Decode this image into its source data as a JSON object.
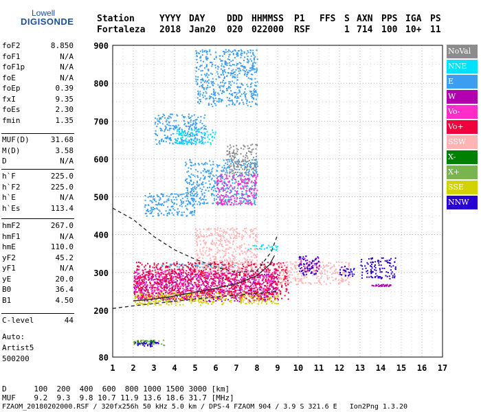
{
  "logo": {
    "line1": "Lowell",
    "line2": "DIGISONDE"
  },
  "header": {
    "labels": [
      "Station",
      "YYYY",
      "DAY",
      "DDD",
      "HHMMSS",
      "P1",
      "FFS",
      "S",
      "AXN",
      "PPS",
      "IGA",
      "PS"
    ],
    "values": [
      "Fortaleza",
      "2018",
      "Jan20",
      "020",
      "022000",
      "RSF",
      "1",
      "714",
      "100",
      "10+",
      "11"
    ]
  },
  "params": {
    "group1": [
      {
        "name": "foF2",
        "value": "8.850"
      },
      {
        "name": "foF1",
        "value": "N/A"
      },
      {
        "name": "foF1p",
        "value": "N/A"
      },
      {
        "name": "foE",
        "value": "N/A"
      },
      {
        "name": "foEp",
        "value": "0.39"
      },
      {
        "name": "fxI",
        "value": "9.35"
      },
      {
        "name": "foEs",
        "value": "2.30"
      },
      {
        "name": "fmin",
        "value": "1.35"
      }
    ],
    "group2": [
      {
        "name": "MUF(D)",
        "value": "31.68"
      },
      {
        "name": "M(D)",
        "value": "3.58"
      },
      {
        "name": "D",
        "value": "N/A"
      }
    ],
    "group3": [
      {
        "name": "h`F",
        "value": "225.0"
      },
      {
        "name": "h`F2",
        "value": "225.0"
      },
      {
        "name": "h`E",
        "value": "N/A"
      },
      {
        "name": "h`Es",
        "value": "113.4"
      }
    ],
    "group4": [
      {
        "name": "hmF2",
        "value": "267.0"
      },
      {
        "name": "hmF1",
        "value": "N/A"
      },
      {
        "name": "hmE",
        "value": "110.0"
      },
      {
        "name": "yF2",
        "value": "45.2"
      },
      {
        "name": "yF1",
        "value": "N/A"
      },
      {
        "name": "yE",
        "value": "20.0"
      },
      {
        "name": "B0",
        "value": "36.4"
      },
      {
        "name": "B1",
        "value": "4.50"
      }
    ],
    "clevel": {
      "name": "C-level",
      "value": "44"
    }
  },
  "autoscale": {
    "line1": "Auto:",
    "line2": "Artist5",
    "line3": "500200"
  },
  "legend": [
    {
      "label": "NoVal",
      "color": "#8c8c8c"
    },
    {
      "label": "NNE",
      "color": "#00e0ff"
    },
    {
      "label": "E",
      "color": "#3c9ef0"
    },
    {
      "label": "W",
      "color": "#b000b0"
    },
    {
      "label": "Vo-",
      "color": "#ff2cc8"
    },
    {
      "label": "Vo+",
      "color": "#f0003c"
    },
    {
      "label": "SSW",
      "color": "#ffb4b4"
    },
    {
      "label": "X-",
      "color": "#008000"
    },
    {
      "label": "X+",
      "color": "#78b450"
    },
    {
      "label": "SSE",
      "color": "#d2d200"
    },
    {
      "label": "NNW",
      "color": "#2800d2"
    }
  ],
  "footer": {
    "d_row": "D      100  200  400  600  800 1000 1500 3000 [km]",
    "muf_row": "MUF    9.2  9.3  9.8 10.7 11.9 13.6 18.6 31.7 [MHz]",
    "info": "FZAOM_20180202000.RSF / 320fx256h 50 kHz 5.0 km / DPS-4 FZAOM 904 / 3.9 S 321.6 E   Ion2Png 1.3.20"
  },
  "chart_data": {
    "type": "scatter",
    "title": "",
    "xlabel": "",
    "ylabel": "",
    "xlim": [
      1,
      17
    ],
    "ylim": [
      80,
      900
    ],
    "x_ticks": [
      1,
      2,
      3,
      4,
      5,
      6,
      7,
      8,
      9,
      10,
      11,
      12,
      13,
      14,
      15,
      16,
      17
    ],
    "y_ticks": [
      80,
      200,
      300,
      400,
      500,
      600,
      700,
      800,
      900
    ],
    "grid": true,
    "legend_position": "right",
    "series": [
      {
        "name": "E",
        "color": "#3c9ef0",
        "clusters": [
          {
            "x": [
              3.0,
              5.5
            ],
            "y": [
              640,
              720
            ]
          },
          {
            "x": [
              5.0,
              8.0
            ],
            "y": [
              740,
              890
            ]
          },
          {
            "x": [
              2.5,
              5.0
            ],
            "y": [
              450,
              510
            ]
          },
          {
            "x": [
              4.5,
              8.0
            ],
            "y": [
              480,
              600
            ]
          },
          {
            "x": [
              3.0,
              7.0
            ],
            "y": [
              315,
              325
            ]
          }
        ]
      },
      {
        "name": "NNE",
        "color": "#00e0ff",
        "clusters": [
          {
            "x": [
              7.5,
              9.0
            ],
            "y": [
              360,
              375
            ]
          },
          {
            "x": [
              4.0,
              6.0
            ],
            "y": [
              640,
              680
            ]
          }
        ]
      },
      {
        "name": "W",
        "color": "#b000b0",
        "clusters": [
          {
            "x": [
              2.0,
              9.0
            ],
            "y": [
              225,
              300
            ]
          },
          {
            "x": [
              10.0,
              11.0
            ],
            "y": [
              300,
              340
            ]
          },
          {
            "x": [
              13.5,
              14.5
            ],
            "y": [
              265,
              270
            ]
          }
        ]
      },
      {
        "name": "Vo-",
        "color": "#ff2cc8",
        "clusters": [
          {
            "x": [
              2.0,
              9.0
            ],
            "y": [
              235,
              310
            ]
          },
          {
            "x": [
              6.0,
              8.0
            ],
            "y": [
              480,
              560
            ]
          }
        ]
      },
      {
        "name": "Vo+",
        "color": "#f0003c",
        "clusters": [
          {
            "x": [
              2.0,
              9.5
            ],
            "y": [
              230,
              330
            ]
          }
        ]
      },
      {
        "name": "SSW",
        "color": "#ffb4b4",
        "clusters": [
          {
            "x": [
              9.0,
              12.5
            ],
            "y": [
              270,
              330
            ]
          },
          {
            "x": [
              5.0,
              8.0
            ],
            "y": [
              300,
              420
            ]
          }
        ]
      },
      {
        "name": "X-",
        "color": "#008000",
        "clusters": [
          {
            "x": [
              2.0,
              3.0
            ],
            "y": [
              115,
              125
            ]
          }
        ]
      },
      {
        "name": "X+",
        "color": "#78b450",
        "clusters": [
          {
            "x": [
              2.0,
              3.5
            ],
            "y": [
              110,
              125
            ]
          }
        ]
      },
      {
        "name": "SSE",
        "color": "#d2d200",
        "clusters": [
          {
            "x": [
              2.0,
              9.0
            ],
            "y": [
              215,
              250
            ]
          }
        ]
      },
      {
        "name": "NNW",
        "color": "#2800d2",
        "clusters": [
          {
            "x": [
              2.0,
              3.2
            ],
            "y": [
              108,
              120
            ]
          },
          {
            "x": [
              10.0,
              11.0
            ],
            "y": [
              295,
              345
            ]
          },
          {
            "x": [
              12.0,
              12.7
            ],
            "y": [
              290,
              320
            ]
          },
          {
            "x": [
              13.0,
              14.7
            ],
            "y": [
              285,
              340
            ]
          }
        ]
      },
      {
        "name": "NoVal",
        "color": "#8c8c8c",
        "clusters": [
          {
            "x": [
              6.5,
              8.0
            ],
            "y": [
              560,
              640
            ]
          }
        ]
      }
    ],
    "traces": [
      {
        "style": "dashed",
        "x": [
          1.0,
          2.0,
          3.0,
          4.0,
          5.0,
          6.0,
          7.0,
          8.0,
          8.7,
          9.0
        ],
        "y": [
          470,
          440,
          395,
          360,
          335,
          315,
          300,
          305,
          355,
          400
        ]
      },
      {
        "style": "dashed",
        "x": [
          1.0,
          2.0,
          3.0,
          4.0,
          5.0,
          6.0,
          7.0,
          8.0,
          9.0
        ],
        "y": [
          205,
          212,
          218,
          224,
          230,
          235,
          240,
          245,
          250
        ]
      },
      {
        "style": "solid",
        "x": [
          2.0,
          3.0,
          4.0,
          5.0,
          6.0,
          7.0,
          8.0,
          8.6,
          8.85
        ],
        "y": [
          225,
          230,
          238,
          248,
          258,
          270,
          292,
          320,
          345
        ]
      }
    ]
  }
}
